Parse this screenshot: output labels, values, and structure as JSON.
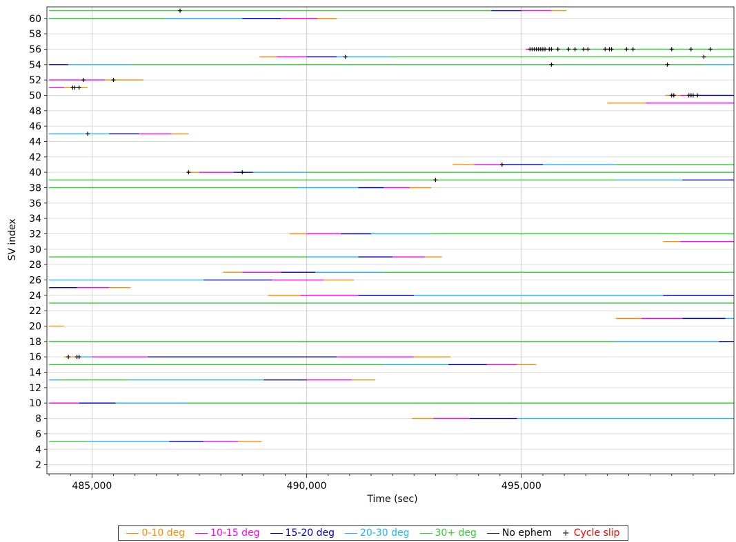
{
  "chart_data": {
    "type": "timeline",
    "xlabel": "Time (sec)",
    "ylabel": "SV index",
    "xlim": [
      483950,
      499950
    ],
    "ylim": [
      0.8,
      61.5
    ],
    "x_ticks": [
      485000,
      490000,
      495000
    ],
    "x_tick_labels": [
      "485,000",
      "490,000",
      "495,000"
    ],
    "y_ticks": [
      2,
      4,
      6,
      8,
      10,
      12,
      14,
      16,
      18,
      20,
      22,
      24,
      26,
      28,
      30,
      32,
      34,
      36,
      38,
      40,
      42,
      44,
      46,
      48,
      50,
      52,
      54,
      56,
      58,
      60
    ],
    "grid": true,
    "legend_position": "bottom",
    "colors": {
      "c0": "#ff8c00",
      "c10": "#ff00ff",
      "c15": "#0000cd",
      "c20": "#1eb4ff",
      "c30": "#32cd32",
      "noeph": "#1c3440",
      "slip": "#000000"
    },
    "legend": [
      {
        "label": "0-10 deg",
        "key": "c0",
        "kind": "line"
      },
      {
        "label": "10-15 deg",
        "key": "c10",
        "kind": "line"
      },
      {
        "label": "15-20 deg",
        "key": "c15",
        "kind": "line"
      },
      {
        "label": "20-30 deg",
        "key": "c20",
        "kind": "line"
      },
      {
        "label": "30+ deg",
        "key": "c30",
        "kind": "line"
      },
      {
        "label": "No ephem",
        "key": "noeph",
        "kind": "line"
      },
      {
        "label": "Cycle slip",
        "key": "slip",
        "kind": "cross",
        "text_color": "#ff0000"
      }
    ],
    "series": [
      {
        "sv": 61,
        "segments": [
          [
            484000,
            494300,
            "c30"
          ],
          [
            494300,
            495000,
            "c15"
          ],
          [
            495000,
            495700,
            "c10"
          ],
          [
            495700,
            496050,
            "c0"
          ]
        ]
      },
      {
        "sv": 60,
        "segments": [
          [
            484000,
            486700,
            "c30"
          ],
          [
            486700,
            488500,
            "c20"
          ],
          [
            488500,
            489400,
            "c15"
          ],
          [
            489400,
            490250,
            "c10"
          ],
          [
            490250,
            490700,
            "c0"
          ]
        ]
      },
      {
        "sv": 56,
        "segments": [
          [
            495100,
            495550,
            "c10"
          ],
          [
            495550,
            499950,
            "c30"
          ]
        ]
      },
      {
        "sv": 55,
        "segments": [
          [
            488900,
            489300,
            "c0"
          ],
          [
            489300,
            490000,
            "c10"
          ],
          [
            490000,
            490700,
            "c15"
          ],
          [
            490700,
            491900,
            "c20"
          ],
          [
            491900,
            499950,
            "c30"
          ]
        ]
      },
      {
        "sv": 54,
        "segments": [
          [
            484000,
            484450,
            "c15"
          ],
          [
            484450,
            485900,
            "c20"
          ],
          [
            485900,
            499300,
            "c30"
          ],
          [
            499300,
            499950,
            "c20"
          ]
        ]
      },
      {
        "sv": 52,
        "segments": [
          [
            484000,
            485300,
            "c10"
          ],
          [
            485300,
            486200,
            "c0"
          ]
        ]
      },
      {
        "sv": 51,
        "segments": [
          [
            484000,
            484350,
            "c10"
          ],
          [
            484350,
            484900,
            "c0"
          ]
        ]
      },
      {
        "sv": 50,
        "segments": [
          [
            498350,
            498700,
            "c0"
          ],
          [
            498700,
            499100,
            "c10"
          ],
          [
            499100,
            499950,
            "c15"
          ]
        ]
      },
      {
        "sv": 49,
        "segments": [
          [
            497000,
            497900,
            "c0"
          ],
          [
            497900,
            499950,
            "c10"
          ]
        ]
      },
      {
        "sv": 45,
        "segments": [
          [
            484000,
            485400,
            "c20"
          ],
          [
            485400,
            486100,
            "c15"
          ],
          [
            486100,
            486850,
            "c10"
          ],
          [
            486850,
            487250,
            "c0"
          ]
        ]
      },
      {
        "sv": 41,
        "segments": [
          [
            493400,
            493900,
            "c0"
          ],
          [
            493900,
            494550,
            "c10"
          ],
          [
            494550,
            495500,
            "c15"
          ],
          [
            495500,
            497200,
            "c20"
          ],
          [
            497200,
            499950,
            "c30"
          ]
        ]
      },
      {
        "sv": 40,
        "segments": [
          [
            487200,
            487500,
            "c0"
          ],
          [
            487500,
            488300,
            "c10"
          ],
          [
            488300,
            488750,
            "c15"
          ],
          [
            488750,
            490000,
            "c20"
          ],
          [
            490000,
            499950,
            "c30"
          ]
        ]
      },
      {
        "sv": 39,
        "segments": [
          [
            484000,
            497200,
            "c30"
          ],
          [
            497200,
            498750,
            "c20"
          ],
          [
            498750,
            499950,
            "c15"
          ]
        ]
      },
      {
        "sv": 38,
        "segments": [
          [
            484000,
            489800,
            "c30"
          ],
          [
            489800,
            491200,
            "c20"
          ],
          [
            491200,
            491800,
            "c15"
          ],
          [
            491800,
            492400,
            "c10"
          ],
          [
            492400,
            492900,
            "c0"
          ]
        ]
      },
      {
        "sv": 32,
        "segments": [
          [
            489600,
            490000,
            "c0"
          ],
          [
            490000,
            490800,
            "c10"
          ],
          [
            490800,
            491500,
            "c15"
          ],
          [
            491500,
            492900,
            "c20"
          ],
          [
            492900,
            499950,
            "c30"
          ]
        ]
      },
      {
        "sv": 31,
        "segments": [
          [
            498300,
            498700,
            "c0"
          ],
          [
            498700,
            499950,
            "c10"
          ]
        ]
      },
      {
        "sv": 29,
        "segments": [
          [
            484000,
            490000,
            "c30"
          ],
          [
            490000,
            491200,
            "c20"
          ],
          [
            491200,
            492000,
            "c15"
          ],
          [
            492000,
            492750,
            "c10"
          ],
          [
            492750,
            493150,
            "c0"
          ]
        ]
      },
      {
        "sv": 27,
        "segments": [
          [
            488050,
            488500,
            "c0"
          ],
          [
            488500,
            489400,
            "c10"
          ],
          [
            489400,
            490200,
            "c15"
          ],
          [
            490200,
            491800,
            "c20"
          ],
          [
            491800,
            499950,
            "c30"
          ]
        ]
      },
      {
        "sv": 26,
        "segments": [
          [
            484000,
            487600,
            "c20"
          ],
          [
            487600,
            489200,
            "c15"
          ],
          [
            489200,
            490400,
            "c10"
          ],
          [
            490400,
            491100,
            "c0"
          ]
        ]
      },
      {
        "sv": 25,
        "segments": [
          [
            484000,
            484650,
            "c15"
          ],
          [
            484650,
            485400,
            "c10"
          ],
          [
            485400,
            485900,
            "c0"
          ]
        ]
      },
      {
        "sv": 24,
        "segments": [
          [
            489100,
            489850,
            "c0"
          ],
          [
            489850,
            491200,
            "c10"
          ],
          [
            491200,
            492500,
            "c15"
          ],
          [
            492500,
            498300,
            "c20"
          ],
          [
            498300,
            499950,
            "c15"
          ]
        ]
      },
      {
        "sv": 23,
        "segments": [
          [
            484000,
            499950,
            "c30"
          ]
        ]
      },
      {
        "sv": 21,
        "segments": [
          [
            497200,
            497800,
            "c0"
          ],
          [
            497800,
            498750,
            "c10"
          ],
          [
            498750,
            499750,
            "c15"
          ],
          [
            499750,
            499950,
            "c20"
          ]
        ]
      },
      {
        "sv": 20,
        "segments": [
          [
            484000,
            484350,
            "c0"
          ]
        ]
      },
      {
        "sv": 18,
        "segments": [
          [
            484000,
            497200,
            "c30"
          ],
          [
            497200,
            499600,
            "c20"
          ],
          [
            499600,
            499950,
            "c15"
          ]
        ]
      },
      {
        "sv": 16,
        "segments": [
          [
            484350,
            484700,
            "c0"
          ],
          [
            484700,
            485000,
            "c20"
          ],
          [
            485000,
            486300,
            "c10"
          ],
          [
            486300,
            490700,
            "c15"
          ],
          [
            490700,
            492500,
            "c10"
          ],
          [
            492500,
            493350,
            "c0"
          ]
        ]
      },
      {
        "sv": 15,
        "segments": [
          [
            484000,
            491800,
            "c30"
          ],
          [
            491800,
            493300,
            "c20"
          ],
          [
            493300,
            494200,
            "c15"
          ],
          [
            494200,
            494900,
            "c10"
          ],
          [
            494900,
            495350,
            "c0"
          ]
        ]
      },
      {
        "sv": 13,
        "segments": [
          [
            484000,
            484200,
            "c20"
          ],
          [
            484200,
            485900,
            "c30"
          ],
          [
            485900,
            489000,
            "c20"
          ],
          [
            489000,
            490000,
            "c15"
          ],
          [
            490000,
            491050,
            "c10"
          ],
          [
            491050,
            491600,
            "c0"
          ]
        ]
      },
      {
        "sv": 10,
        "segments": [
          [
            484000,
            484700,
            "c10"
          ],
          [
            484700,
            485550,
            "c15"
          ],
          [
            485550,
            487200,
            "c20"
          ],
          [
            487200,
            499950,
            "c30"
          ]
        ]
      },
      {
        "sv": 8,
        "segments": [
          [
            492450,
            492950,
            "c0"
          ],
          [
            492950,
            493800,
            "c10"
          ],
          [
            493800,
            494900,
            "c15"
          ],
          [
            494900,
            499950,
            "c20"
          ]
        ]
      },
      {
        "sv": 5,
        "segments": [
          [
            484000,
            484900,
            "c30"
          ],
          [
            484900,
            486800,
            "c20"
          ],
          [
            486800,
            487600,
            "c15"
          ],
          [
            487600,
            488400,
            "c10"
          ],
          [
            488400,
            488950,
            "c0"
          ]
        ]
      }
    ],
    "cycle_slips": [
      [
        487050,
        61
      ],
      [
        495200,
        56
      ],
      [
        495250,
        56
      ],
      [
        495300,
        56
      ],
      [
        495350,
        56
      ],
      [
        495400,
        56
      ],
      [
        495450,
        56
      ],
      [
        495500,
        56
      ],
      [
        495550,
        56
      ],
      [
        495650,
        56
      ],
      [
        495700,
        56
      ],
      [
        495850,
        56
      ],
      [
        496100,
        56
      ],
      [
        496250,
        56
      ],
      [
        496450,
        56
      ],
      [
        496550,
        56
      ],
      [
        496950,
        56
      ],
      [
        497050,
        56
      ],
      [
        497100,
        56
      ],
      [
        497450,
        56
      ],
      [
        497600,
        56
      ],
      [
        498500,
        56
      ],
      [
        498950,
        56
      ],
      [
        499400,
        56
      ],
      [
        490900,
        55
      ],
      [
        499250,
        55
      ],
      [
        495700,
        54
      ],
      [
        498400,
        54
      ],
      [
        484800,
        52
      ],
      [
        485500,
        52
      ],
      [
        484550,
        51
      ],
      [
        484600,
        51
      ],
      [
        484700,
        51
      ],
      [
        498500,
        50
      ],
      [
        498550,
        50
      ],
      [
        498900,
        50
      ],
      [
        498950,
        50
      ],
      [
        499000,
        50
      ],
      [
        499100,
        50
      ],
      [
        484900,
        45
      ],
      [
        494550,
        41
      ],
      [
        487250,
        40
      ],
      [
        488500,
        40
      ],
      [
        493000,
        39
      ],
      [
        484450,
        16
      ],
      [
        484650,
        16
      ],
      [
        484700,
        16
      ]
    ]
  }
}
